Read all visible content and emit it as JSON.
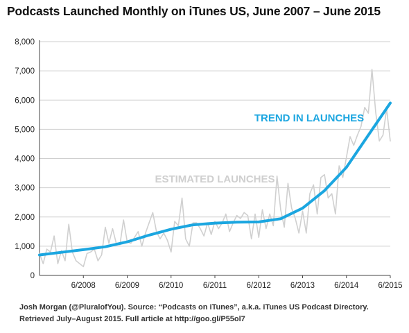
{
  "chart_data": {
    "type": "line",
    "title": "Podcasts Launched Monthly on iTunes US, June 2007 – June 2015",
    "xlabel": "",
    "ylabel": "",
    "x_ticks": [
      "6/2008",
      "6/2009",
      "6/2010",
      "6/2011",
      "6/2012",
      "6/2013",
      "6/2014",
      "6/2015"
    ],
    "y_ticks": [
      "0",
      "1,000",
      "2,000",
      "3,000",
      "4,000",
      "5,000",
      "6,000",
      "7,000",
      "8,000"
    ],
    "ylim": [
      0,
      8000
    ],
    "xlim": [
      "2007-06",
      "2015-06"
    ],
    "grid": true,
    "series": [
      {
        "name": "ESTIMATED LAUNCHES",
        "color": "#d0d0d0",
        "x": [
          "2007-06",
          "2007-07",
          "2007-08",
          "2007-09",
          "2007-10",
          "2007-11",
          "2007-12",
          "2008-01",
          "2008-02",
          "2008-03",
          "2008-04",
          "2008-05",
          "2008-06",
          "2008-07",
          "2008-08",
          "2008-09",
          "2008-10",
          "2008-11",
          "2008-12",
          "2009-01",
          "2009-02",
          "2009-03",
          "2009-04",
          "2009-05",
          "2009-06",
          "2009-07",
          "2009-08",
          "2009-09",
          "2009-10",
          "2009-11",
          "2009-12",
          "2010-01",
          "2010-02",
          "2010-03",
          "2010-04",
          "2010-05",
          "2010-06",
          "2010-07",
          "2010-08",
          "2010-09",
          "2010-10",
          "2010-11",
          "2010-12",
          "2011-01",
          "2011-02",
          "2011-03",
          "2011-04",
          "2011-05",
          "2011-06",
          "2011-07",
          "2011-08",
          "2011-09",
          "2011-10",
          "2011-11",
          "2011-12",
          "2012-01",
          "2012-02",
          "2012-03",
          "2012-04",
          "2012-05",
          "2012-06",
          "2012-07",
          "2012-08",
          "2012-09",
          "2012-10",
          "2012-11",
          "2012-12",
          "2013-01",
          "2013-02",
          "2013-03",
          "2013-04",
          "2013-05",
          "2013-06",
          "2013-07",
          "2013-08",
          "2013-09",
          "2013-10",
          "2013-11",
          "2013-12",
          "2014-01",
          "2014-02",
          "2014-03",
          "2014-04",
          "2014-05",
          "2014-06",
          "2014-07",
          "2014-08",
          "2014-09",
          "2014-10",
          "2014-11",
          "2014-12",
          "2015-01",
          "2015-02",
          "2015-03",
          "2015-04",
          "2015-05",
          "2015-06"
        ],
        "values": [
          750,
          400,
          900,
          800,
          1350,
          400,
          850,
          500,
          1750,
          800,
          500,
          400,
          300,
          750,
          800,
          900,
          500,
          700,
          1650,
          1100,
          1600,
          1100,
          1050,
          1900,
          1150,
          1100,
          1300,
          1500,
          1000,
          1450,
          1800,
          2150,
          1500,
          1250,
          1450,
          1200,
          800,
          1850,
          1700,
          2650,
          1250,
          1000,
          1800,
          1800,
          1600,
          1350,
          1800,
          1400,
          1850,
          1600,
          1800,
          2100,
          1500,
          1800,
          2050,
          1950,
          2150,
          2050,
          1250,
          2100,
          1300,
          2250,
          1600,
          2100,
          1700,
          3400,
          2250,
          1650,
          3150,
          2300,
          1950,
          1450,
          2200,
          1450,
          2800,
          3100,
          2100,
          3350,
          3450,
          2650,
          2800,
          2100,
          3750,
          3350,
          4050,
          4750,
          4450,
          4800,
          5100,
          5750,
          5550,
          7050,
          5600,
          4600,
          4800,
          5700,
          4600
        ]
      },
      {
        "name": "TREND IN LAUNCHES",
        "color": "#1ba6e0",
        "x": [
          "2007-06",
          "2007-12",
          "2008-06",
          "2008-12",
          "2009-06",
          "2009-12",
          "2010-06",
          "2010-12",
          "2011-06",
          "2011-12",
          "2012-06",
          "2012-12",
          "2013-06",
          "2013-12",
          "2014-06",
          "2014-12",
          "2015-06"
        ],
        "values": [
          700,
          790,
          880,
          980,
          1150,
          1380,
          1580,
          1730,
          1790,
          1820,
          1830,
          1940,
          2300,
          2900,
          3700,
          4800,
          5900
        ]
      }
    ]
  },
  "footer": {
    "line1": "Josh Morgan (@PluralofYou). Source: “Podcasts on iTunes”, a.k.a. iTunes US Podcast Directory.",
    "line2": "Retrieved July–August 2015. Full article at http://goo.gl/P55ol7"
  }
}
